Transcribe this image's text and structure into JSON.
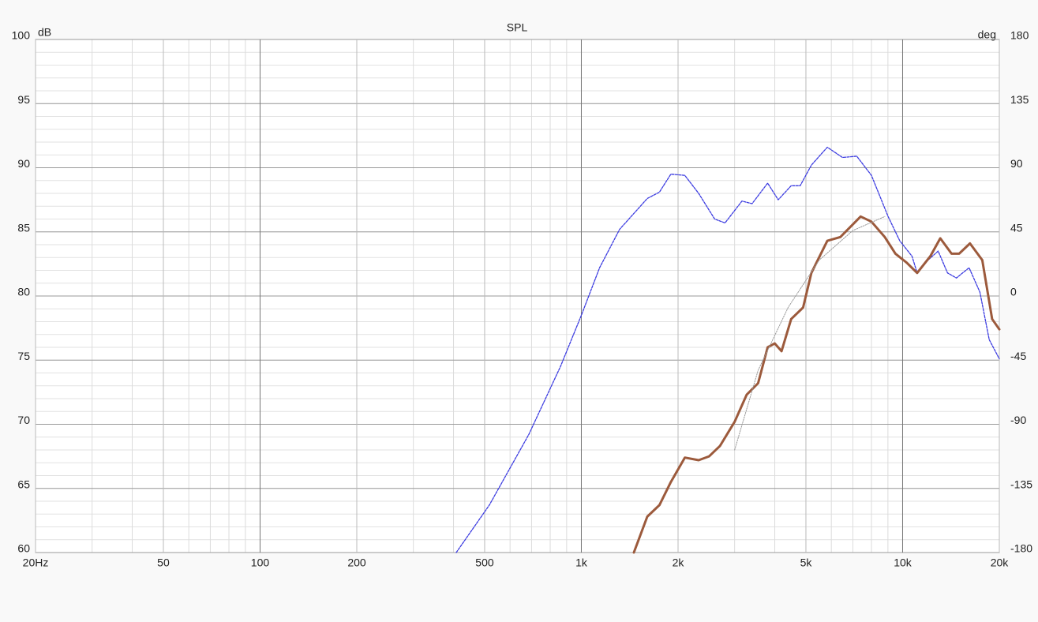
{
  "chart_data": {
    "type": "line",
    "title": "SPL",
    "ylabel": "dB",
    "y2label": "deg",
    "xscale": "log",
    "grid": true,
    "minor_grid": true,
    "xlim": [
      20,
      20000
    ],
    "xticks": [
      {
        "value": 20,
        "label": "20Hz"
      },
      50,
      100,
      200,
      500,
      {
        "value": 1000,
        "label": "1k"
      },
      {
        "value": 2000,
        "label": "2k"
      },
      {
        "value": 5000,
        "label": "5k"
      },
      {
        "value": 10000,
        "label": "10k"
      },
      {
        "value": 20000,
        "label": "20k"
      }
    ],
    "ylim": [
      60,
      100
    ],
    "yticks": [
      60,
      65,
      70,
      75,
      80,
      85,
      90,
      95,
      100
    ],
    "y2lim": [
      -180,
      180
    ],
    "y2ticks": [
      -180,
      -135,
      -90,
      -45,
      0,
      45,
      90,
      135,
      180
    ],
    "series": [
      {
        "color": "#3a3ae0",
        "style": "dashed",
        "width": 1.3,
        "x": [
          408,
          517,
          686,
          861,
          1000,
          1140,
          1316,
          1604,
          1750,
          1900,
          2100,
          2318,
          2600,
          2800,
          3163,
          3400,
          3800,
          4100,
          4500,
          4800,
          5200,
          5830,
          6500,
          7200,
          8000,
          9010,
          9800,
          10700,
          11100,
          12000,
          12900,
          13800,
          14700,
          16100,
          17400,
          18600,
          20000
        ],
        "values": [
          60,
          63.7,
          69.2,
          74.5,
          78.5,
          82.2,
          85.2,
          87.6,
          88.1,
          89.5,
          89.4,
          88,
          86,
          85.7,
          87.4,
          87.2,
          88.8,
          87.5,
          88.6,
          88.6,
          90.2,
          91.6,
          90.8,
          90.9,
          89.4,
          86.2,
          84.3,
          83.1,
          81.8,
          82.8,
          83.5,
          81.8,
          81.4,
          82.2,
          80.3,
          76.6,
          75.1
        ]
      },
      {
        "color": "#9c5a3c",
        "style": "solid",
        "width": 3,
        "x": [
          1457,
          1604,
          1750,
          1900,
          2100,
          2318,
          2500,
          2700,
          3000,
          3270,
          3550,
          3800,
          4000,
          4200,
          4500,
          4900,
          5200,
          5830,
          6400,
          7400,
          8000,
          8800,
          9500,
          10300,
          11100,
          12200,
          13100,
          14200,
          15000,
          16200,
          17700,
          19000,
          20000
        ],
        "values": [
          60,
          62.8,
          63.7,
          65.5,
          67.4,
          67.2,
          67.5,
          68.3,
          70.2,
          72.3,
          73.2,
          76,
          76.3,
          75.7,
          78.2,
          79.1,
          81.8,
          84.3,
          84.6,
          86.2,
          85.8,
          84.6,
          83.3,
          82.6,
          81.8,
          83.1,
          84.5,
          83.3,
          83.3,
          84.1,
          82.8,
          78.2,
          77.4
        ]
      },
      {
        "color": "#999999",
        "style": "dotted",
        "width": 1,
        "x": [
          3000,
          3550,
          4400,
          5500,
          7000,
          8800
        ],
        "values": [
          68.0,
          74.2,
          79.1,
          82.8,
          85.1,
          86.2
        ]
      }
    ]
  }
}
